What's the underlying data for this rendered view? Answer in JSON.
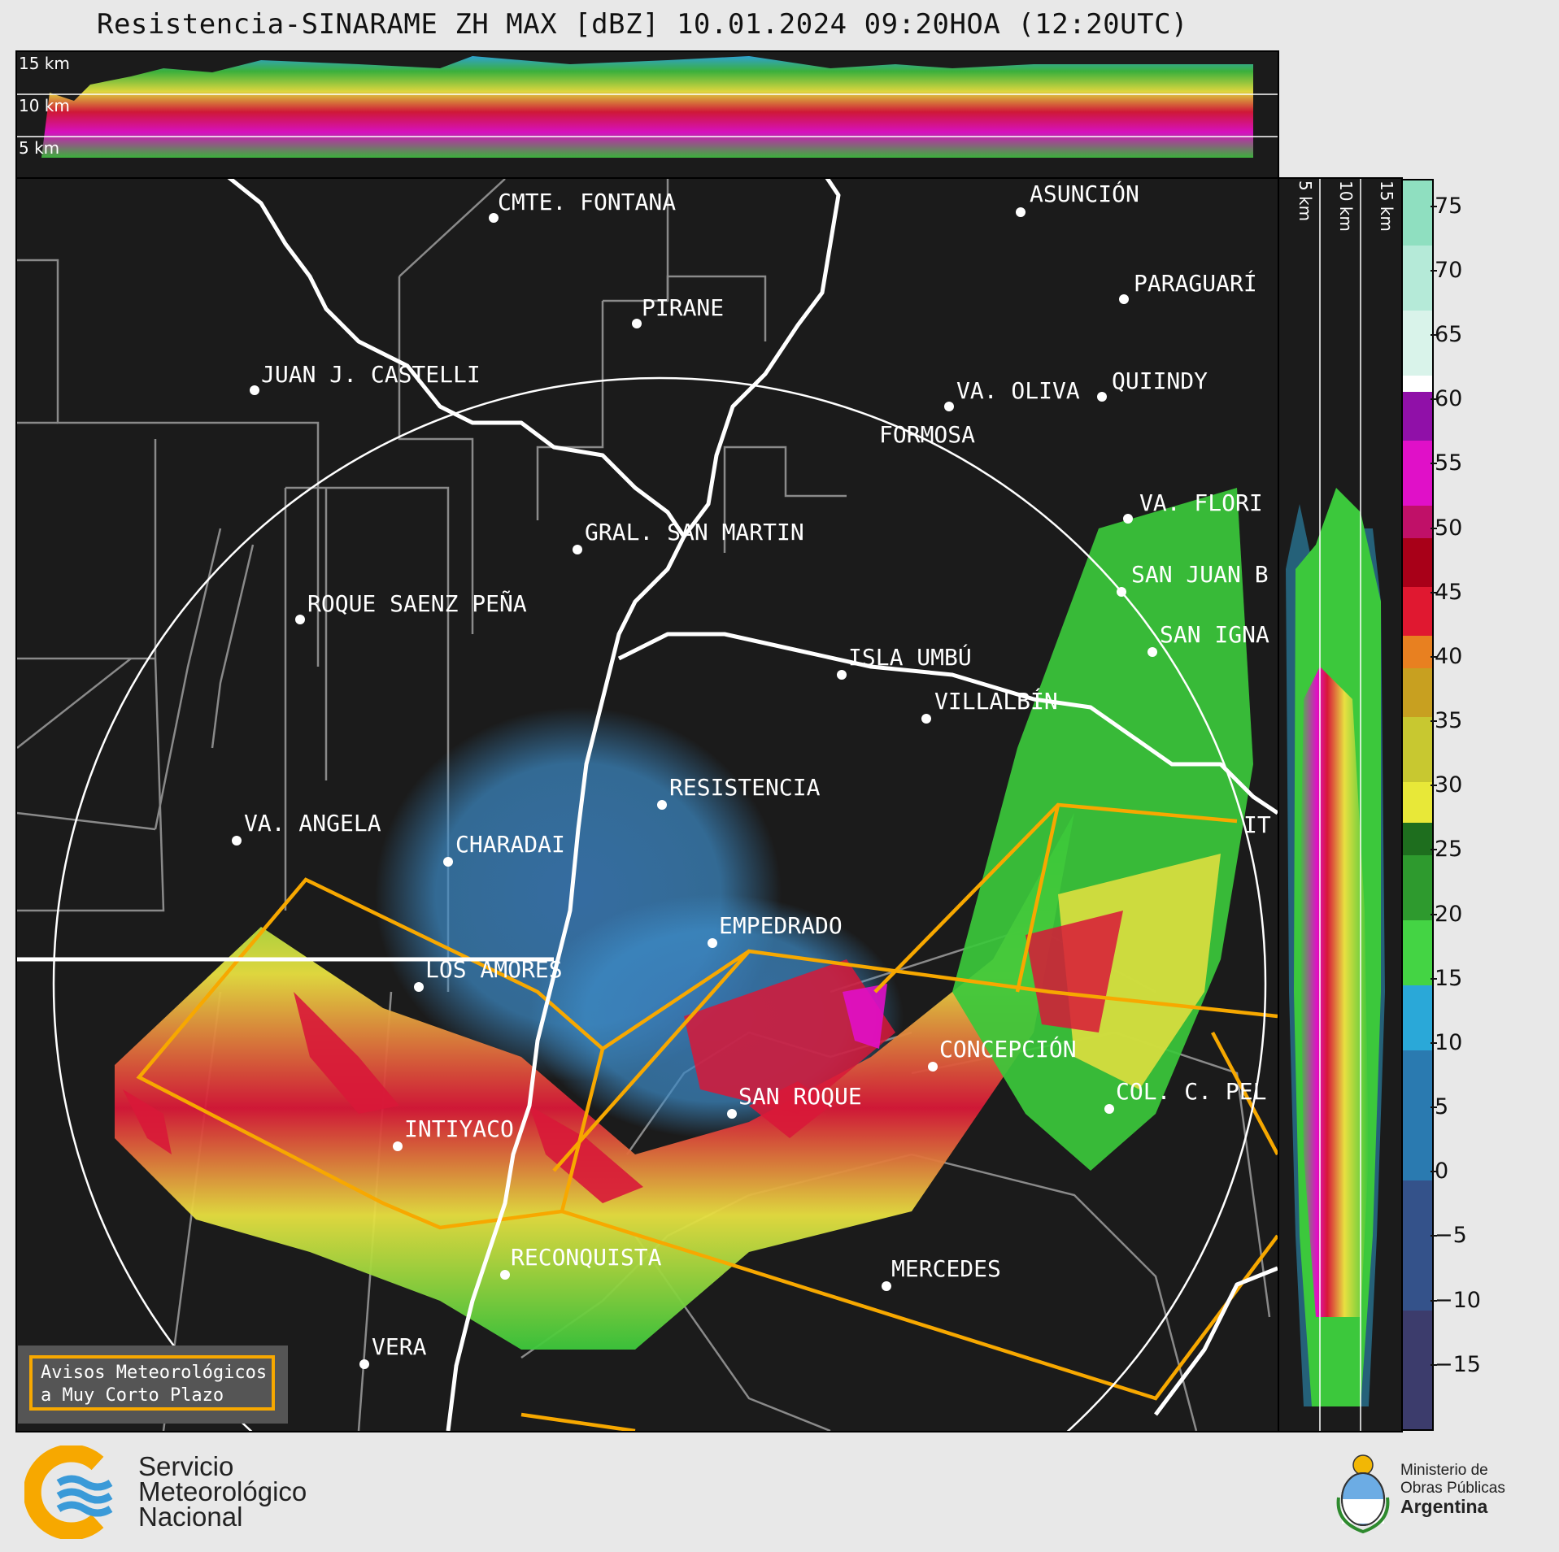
{
  "title": "Resistencia-SINARAME ZH MAX [dBZ] 10.01.2024 09:20HOA (12:20UTC)",
  "top_strip": {
    "labels": [
      "15 km",
      "10 km",
      "5 km"
    ]
  },
  "side_strip": {
    "labels": [
      "5 km",
      "10 km",
      "15 km"
    ]
  },
  "colorbar": {
    "unit": "dBZ",
    "ticks": [
      "75",
      "70",
      "65",
      "60",
      "55",
      "50",
      "45",
      "40",
      "35",
      "30",
      "25",
      "20",
      "15",
      "10",
      "5",
      "0",
      "−5",
      "−10",
      "−15"
    ],
    "min": -20,
    "max": 77
  },
  "cities": [
    {
      "name": "CMTE. FONTANA"
    },
    {
      "name": "ASUNCIÓN"
    },
    {
      "name": "PIRANE"
    },
    {
      "name": "PARAGUARÍ"
    },
    {
      "name": "JUAN J. CASTELLI"
    },
    {
      "name": "VA. OLIVA"
    },
    {
      "name": "QUIINDY"
    },
    {
      "name": "FORMOSA"
    },
    {
      "name": "VA. FLORI"
    },
    {
      "name": "GRAL. SAN MARTIN"
    },
    {
      "name": "SAN JUAN B"
    },
    {
      "name": "ROQUE SAENZ PEÑA"
    },
    {
      "name": "SAN IGNA"
    },
    {
      "name": "ISLA UMBÚ"
    },
    {
      "name": "VILLALBÍN"
    },
    {
      "name": "RESISTENCIA"
    },
    {
      "name": "VA. ANGELA"
    },
    {
      "name": "CHARADAI"
    },
    {
      "name": "IT"
    },
    {
      "name": "EMPEDRADO"
    },
    {
      "name": "LOS AMORES"
    },
    {
      "name": "CONCEPCIÓN"
    },
    {
      "name": "SAN ROQUE"
    },
    {
      "name": "COL. C. PEL"
    },
    {
      "name": "INTIYACO"
    },
    {
      "name": "RECONQUISTA"
    },
    {
      "name": "MERCEDES"
    },
    {
      "name": "VERA"
    }
  ],
  "avisos": {
    "line1": "Avisos Meteorológicos",
    "line2": "a Muy Corto Plazo"
  },
  "logos": {
    "smn": [
      "Servicio",
      "Meteorológico",
      "Nacional"
    ],
    "mop": [
      "Ministerio de",
      "Obras Públicas",
      "Argentina"
    ]
  },
  "colors": {
    "warning_outline": "#f7a800",
    "background": "#1b1b1b",
    "borders": "#888888",
    "river": "#ffffff"
  }
}
